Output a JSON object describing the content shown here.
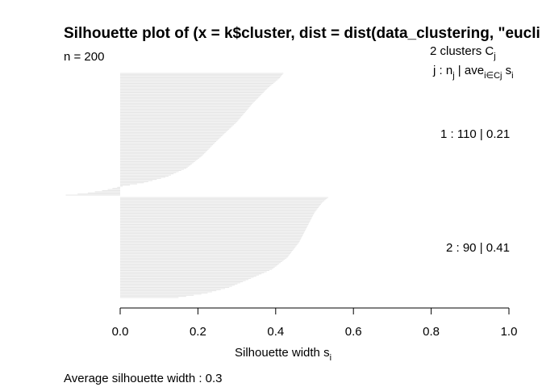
{
  "chart_data": {
    "type": "bar",
    "orientation": "horizontal",
    "title": "Silhouette plot of (x = k$cluster, dist = dist(data_clustering, \"eucli",
    "n_label": "n = 200",
    "header": {
      "line1_prefix": "2  clusters  C",
      "line1_sub": "j",
      "line2_j": "j :  n",
      "line2_j_sub": "j",
      "line2_ave": " | ave",
      "line2_ave_sub": "i∈Cj",
      "line2_s": "  s",
      "line2_s_sub": "i"
    },
    "xlabel": "Silhouette width s",
    "xlabel_sub": "i",
    "xlim": [
      0,
      1
    ],
    "ticks": [
      "0.0",
      "0.2",
      "0.4",
      "0.6",
      "0.8",
      "1.0"
    ],
    "clusters": [
      {
        "id": 1,
        "size": 110,
        "avg": 0.21,
        "label": "1 :   110  |  0.21"
      },
      {
        "id": 2,
        "size": 90,
        "avg": 0.41,
        "label": "2 :   90  |  0.41"
      }
    ],
    "average_label": "Average silhouette width :  0.3",
    "bar_color": "#e6e6e6",
    "shape_points": {
      "cluster1": [
        [
          0,
          0.42
        ],
        [
          0.04,
          0.41
        ],
        [
          0.12,
          0.38
        ],
        [
          0.25,
          0.34
        ],
        [
          0.4,
          0.3
        ],
        [
          0.55,
          0.25
        ],
        [
          0.68,
          0.21
        ],
        [
          0.78,
          0.17
        ],
        [
          0.85,
          0.12
        ],
        [
          0.9,
          0.06
        ],
        [
          0.93,
          0.0
        ],
        [
          0.96,
          -0.04
        ],
        [
          0.985,
          -0.09
        ],
        [
          1.0,
          -0.14
        ]
      ],
      "cluster2": [
        [
          0,
          0.535
        ],
        [
          0.05,
          0.52
        ],
        [
          0.15,
          0.5
        ],
        [
          0.3,
          0.48
        ],
        [
          0.45,
          0.46
        ],
        [
          0.6,
          0.43
        ],
        [
          0.72,
          0.39
        ],
        [
          0.82,
          0.33
        ],
        [
          0.9,
          0.28
        ],
        [
          0.96,
          0.22
        ],
        [
          1.0,
          0.15
        ]
      ]
    }
  }
}
